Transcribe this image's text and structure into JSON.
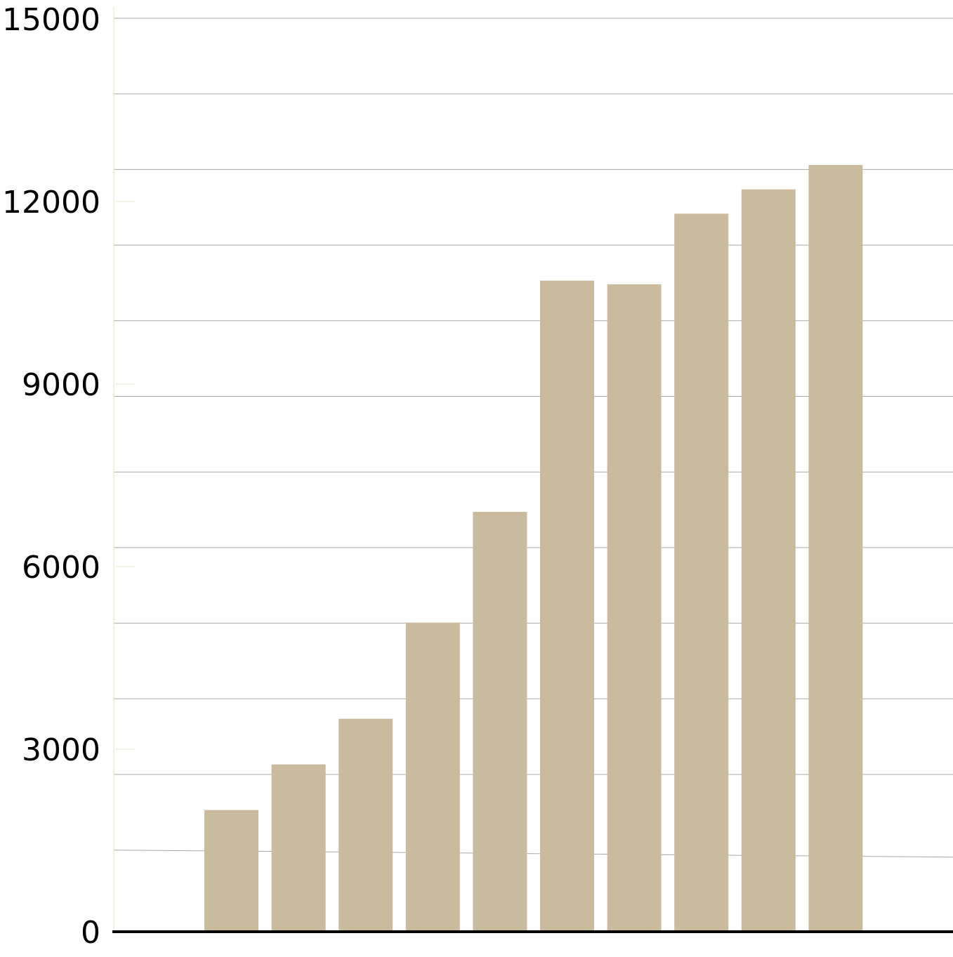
{
  "chart_data": {
    "type": "bar",
    "title": "",
    "xlabel": "",
    "ylabel": "",
    "categories": [
      "",
      "",
      "",
      "",
      "",
      "",
      "",
      "",
      "",
      ""
    ],
    "values": [
      2000,
      2750,
      3500,
      5080,
      6900,
      10700,
      10640,
      11800,
      12200,
      12600
    ],
    "ylim": [
      0,
      15000
    ],
    "yticks": [
      0,
      3000,
      6000,
      9000,
      12000,
      15000
    ],
    "ytick_labels": [
      "0",
      "3000",
      "6000",
      "9000",
      "12000",
      "15000"
    ],
    "grid": true,
    "legend": "none",
    "colors": {
      "bar": "#cbbb9e",
      "grid": "#a8a8a8",
      "axis": "#000000"
    }
  }
}
